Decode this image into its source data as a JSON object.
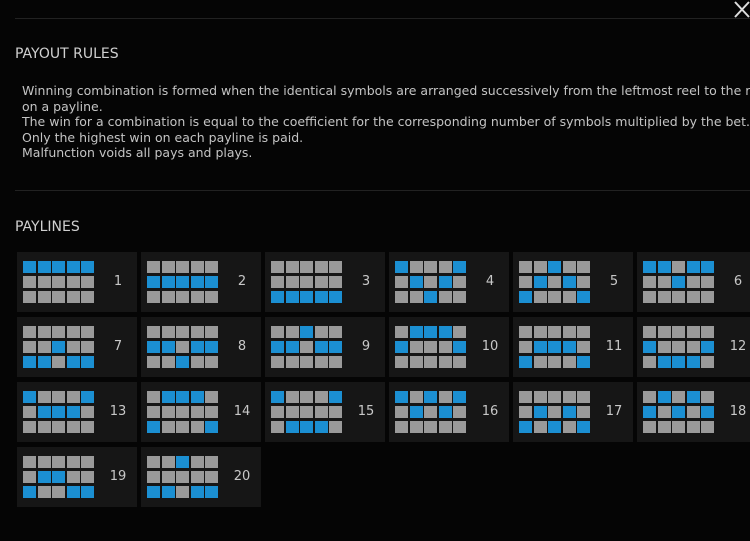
{
  "header": {
    "title": "PAYOUT RULES"
  },
  "rules": {
    "lines": [
      "Winning combination is formed when the identical symbols are arranged successively from the leftmost reel to the right",
      "on a payline.",
      "The win for a combination is equal to the coefficient for the corresponding number of symbols multiplied by the bet.",
      "Only the highest win on each payline is paid.",
      "Malfunction voids all pays and plays."
    ]
  },
  "paylines": {
    "title": "PAYLINES",
    "items": [
      {
        "number": 1,
        "rows": [
          0,
          0,
          0,
          0,
          0
        ]
      },
      {
        "number": 2,
        "rows": [
          1,
          1,
          1,
          1,
          1
        ]
      },
      {
        "number": 3,
        "rows": [
          2,
          2,
          2,
          2,
          2
        ]
      },
      {
        "number": 4,
        "rows": [
          0,
          1,
          2,
          1,
          0
        ]
      },
      {
        "number": 5,
        "rows": [
          2,
          1,
          0,
          1,
          2
        ]
      },
      {
        "number": 6,
        "rows": [
          0,
          0,
          1,
          0,
          0
        ]
      },
      {
        "number": 7,
        "rows": [
          2,
          2,
          1,
          2,
          2
        ]
      },
      {
        "number": 8,
        "rows": [
          1,
          1,
          2,
          1,
          1
        ]
      },
      {
        "number": 9,
        "rows": [
          1,
          1,
          0,
          1,
          1
        ]
      },
      {
        "number": 10,
        "rows": [
          1,
          0,
          0,
          0,
          1
        ]
      },
      {
        "number": 11,
        "rows": [
          2,
          1,
          1,
          1,
          2
        ]
      },
      {
        "number": 12,
        "rows": [
          1,
          2,
          2,
          2,
          1
        ]
      },
      {
        "number": 13,
        "rows": [
          0,
          1,
          1,
          1,
          0
        ]
      },
      {
        "number": 14,
        "rows": [
          2,
          0,
          0,
          0,
          2
        ]
      },
      {
        "number": 15,
        "rows": [
          0,
          2,
          2,
          2,
          0
        ]
      },
      {
        "number": 16,
        "rows": [
          0,
          1,
          0,
          1,
          0
        ]
      },
      {
        "number": 17,
        "rows": [
          2,
          1,
          2,
          1,
          2
        ]
      },
      {
        "number": 18,
        "rows": [
          1,
          0,
          1,
          0,
          1
        ]
      },
      {
        "number": 19,
        "rows": [
          2,
          1,
          1,
          2,
          2
        ]
      },
      {
        "number": 20,
        "rows": [
          2,
          2,
          0,
          2,
          2
        ]
      }
    ]
  }
}
